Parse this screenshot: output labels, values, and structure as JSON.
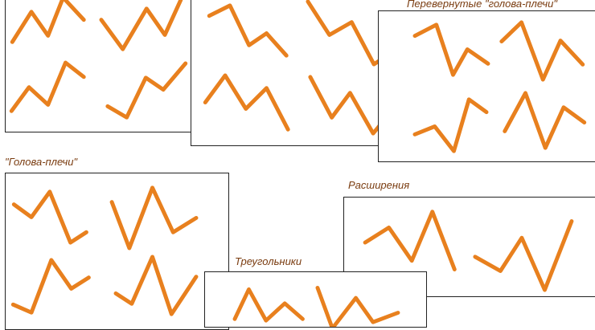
{
  "colors": {
    "pattern": "#e8801e",
    "caption": "#7a3c10",
    "frame": "#222222"
  },
  "captions": {
    "inverse_head_shoulders": "Перевернутые \"голова-плечи\"",
    "head_shoulders": "\"Голова-плечи\"",
    "broadening": "Расширения",
    "triangles": "Треугольники"
  }
}
